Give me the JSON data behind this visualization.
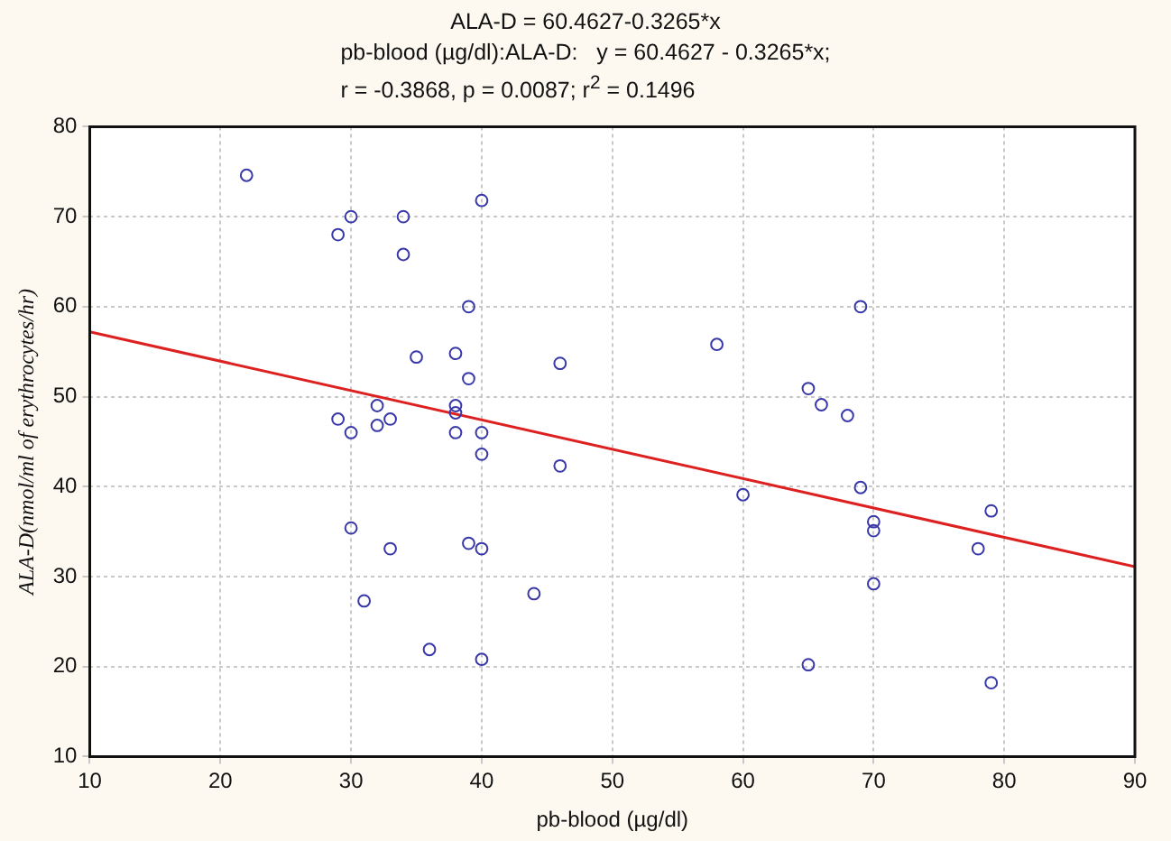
{
  "chart_data": {
    "type": "scatter",
    "title": "ALA-D = 60.4627-0.3265*x",
    "subtitle": "pb-blood (µg/dl):ALA-D:   y = 60.4627 - 0.3265*x;\nr = -0.3868, p = 0.0087; r$^{2}$ = 0.1496",
    "xlabel": "pb-blood (µg/dl)",
    "ylabel": "ALA-D(nmol/ml of erythrocytes/hr)",
    "xlim": [
      10,
      90
    ],
    "xticks": [
      10,
      20,
      30,
      40,
      50,
      60,
      70,
      80,
      90
    ],
    "ylim": [
      10,
      80
    ],
    "yticks": [
      10,
      20,
      30,
      40,
      50,
      60,
      70,
      80
    ],
    "grid": true,
    "marker": "circle",
    "legend": false,
    "series": [
      {
        "color": "#3838a8",
        "x": [
          22,
          30,
          29,
          34,
          34,
          40,
          39,
          35,
          38,
          39,
          46,
          29,
          30,
          32,
          32,
          33,
          38,
          38,
          38,
          40,
          40,
          46,
          30,
          33,
          39,
          40,
          31,
          44,
          36,
          40,
          58,
          69,
          65,
          66,
          68,
          69,
          60,
          70,
          70,
          79,
          78,
          70,
          65,
          79
        ],
        "values": [
          74.6,
          70,
          68,
          70,
          65.8,
          71.8,
          60,
          54.4,
          54.8,
          52,
          53.7,
          47.5,
          46,
          49,
          46.8,
          47.5,
          49,
          48.2,
          46,
          46,
          43.6,
          42.3,
          35.4,
          33.1,
          33.7,
          33.1,
          27.3,
          28.1,
          21.9,
          20.8,
          55.8,
          60,
          50.9,
          49.1,
          47.9,
          39.9,
          39.1,
          36.1,
          35.1,
          37.3,
          33.1,
          29.2,
          20.2,
          18.2
        ]
      },
      {
        "type": "line",
        "color": "#dd2020",
        "marker": "none",
        "x": [
          10,
          90
        ],
        "values": [
          57.2,
          31.1
        ]
      }
    ]
  }
}
